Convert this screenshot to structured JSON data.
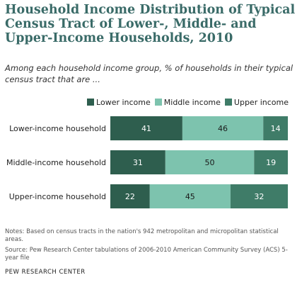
{
  "title": "Household Income Distribution of Typical Census Tract of Lower-, Middle- and Upper-Income Households, 2010",
  "subtitle": "Among each household income group, % of households in their typical census tract that are ...",
  "notes": "Notes: Based on census tracts in the nation's 942 metropolitan and micropolitan statistical areas.",
  "source": "Source: Pew Research Center tabulations of 2006-2010 American Community Survey (ACS) 5-year file",
  "brand": "PEW RESEARCH CENTER",
  "colors": {
    "lower": "#2e5e4e",
    "middle": "#7dc3ae",
    "upper": "#3f7c68"
  },
  "chart_data": {
    "type": "bar",
    "orientation": "horizontal",
    "stacked": true,
    "categories": [
      "Lower-income household",
      "Middle-income household",
      "Upper-income household"
    ],
    "series": [
      {
        "name": "Lower income",
        "values": [
          41,
          31,
          22
        ],
        "color": "#2e5e4e"
      },
      {
        "name": "Middle income",
        "values": [
          46,
          50,
          45
        ],
        "color": "#7dc3ae"
      },
      {
        "name": "Upper income",
        "values": [
          14,
          19,
          32
        ],
        "color": "#3f7c68"
      }
    ],
    "xlim": [
      0,
      100
    ],
    "legend": "top-right",
    "grid": false
  }
}
